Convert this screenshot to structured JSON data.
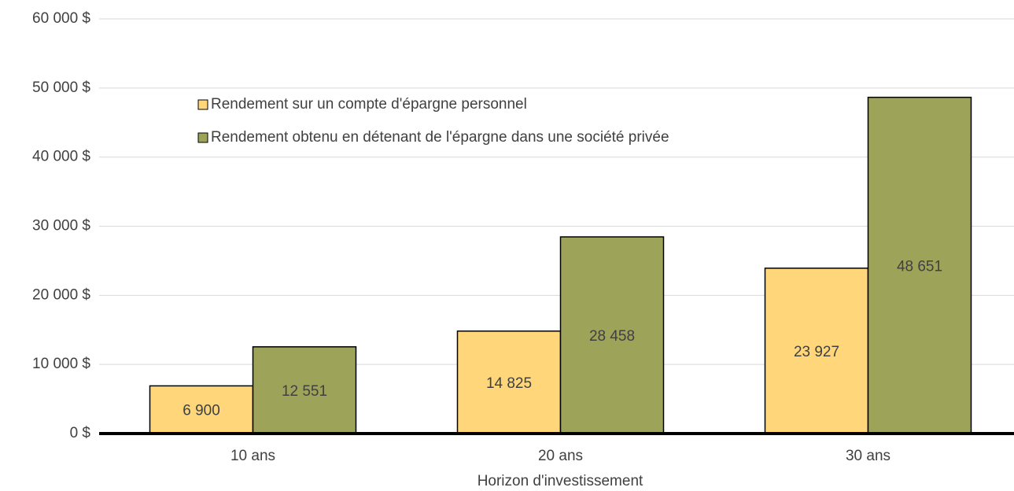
{
  "chart_data": {
    "type": "bar",
    "categories": [
      "10 ans",
      "20 ans",
      "30 ans"
    ],
    "x_label": "Horizon d'investissement",
    "series": [
      {
        "name": "Rendement sur un compte d'épargne personnel",
        "color": "#ffd77a",
        "values": [
          6900,
          14825,
          23927
        ],
        "value_labels": [
          "6 900",
          "14 825",
          "23 927"
        ]
      },
      {
        "name": "Rendement obtenu en détenant de l'épargne dans une société privée",
        "color": "#9ea35a",
        "values": [
          12551,
          28458,
          48651
        ],
        "value_labels": [
          "12 551",
          "28 458",
          "48 651"
        ]
      }
    ],
    "ylim": [
      0,
      60000
    ],
    "yticks": [
      {
        "value": 0,
        "label": "0 $"
      },
      {
        "value": 10000,
        "label": "10 000 $"
      },
      {
        "value": 20000,
        "label": "20 000 $"
      },
      {
        "value": 30000,
        "label": "30 000 $"
      },
      {
        "value": 40000,
        "label": "40 000 $"
      },
      {
        "value": 50000,
        "label": "50 000 $"
      },
      {
        "value": 60000,
        "label": "60 000 $"
      }
    ],
    "grid": true,
    "legend": "top-left"
  }
}
